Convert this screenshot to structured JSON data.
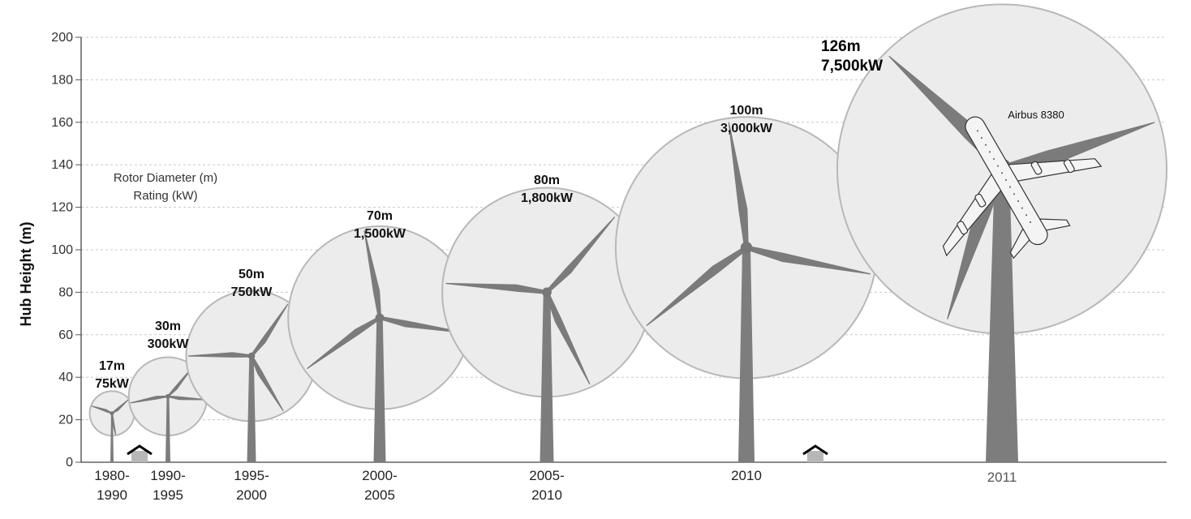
{
  "chart_data": {
    "type": "scatter",
    "title": "",
    "ylabel": "Hub Height (m)",
    "xlabel": "",
    "ylim": [
      0,
      200
    ],
    "yticks": [
      "0",
      "20",
      "40",
      "60",
      "80",
      "100",
      "120",
      "140",
      "160",
      "180",
      "200"
    ],
    "grid": true,
    "legend": {
      "line1": "Rotor Diameter (m)",
      "line2": "Rating (kW)"
    },
    "series": [
      {
        "era_line1": "1980-",
        "era_line2": "1990",
        "hub_height": 23,
        "rotor_diameter": 17,
        "diameter_label": "17m",
        "rating_label": "75kW"
      },
      {
        "era_line1": "1990-",
        "era_line2": "1995",
        "hub_height": 31,
        "rotor_diameter": 30,
        "diameter_label": "30m",
        "rating_label": "300kW"
      },
      {
        "era_line1": "1995-",
        "era_line2": "2000",
        "hub_height": 50,
        "rotor_diameter": 50,
        "diameter_label": "50m",
        "rating_label": "750kW"
      },
      {
        "era_line1": "2000-",
        "era_line2": "2005",
        "hub_height": 68,
        "rotor_diameter": 70,
        "diameter_label": "70m",
        "rating_label": "1,500kW"
      },
      {
        "era_line1": "2005-",
        "era_line2": "2010",
        "hub_height": 80,
        "rotor_diameter": 80,
        "diameter_label": "80m",
        "rating_label": "1,800kW"
      },
      {
        "era_line1": "2010",
        "era_line2": "",
        "hub_height": 101,
        "rotor_diameter": 100,
        "diameter_label": "100m",
        "rating_label": "3,000kW"
      },
      {
        "era_line1": "2011",
        "era_line2": "",
        "hub_height": 138,
        "rotor_diameter": 126,
        "diameter_label": "126m",
        "rating_label": "7,500kW"
      }
    ],
    "annotations": [
      {
        "text": "Airbus 8380"
      }
    ]
  }
}
